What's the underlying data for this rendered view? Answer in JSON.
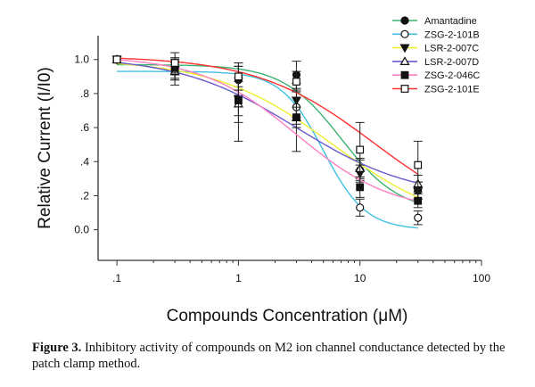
{
  "chart_data": {
    "type": "scatter",
    "xlabel": "Compounds Concentration (μM)",
    "ylabel": "Relative Current (I/I0)",
    "xscale": "log",
    "xlim": [
      0.07,
      100
    ],
    "ylim": [
      -0.18,
      1.14
    ],
    "xticks": [
      0.1,
      1,
      10,
      100
    ],
    "xtick_labels": [
      ".1",
      "1",
      "10",
      "100"
    ],
    "yticks": [
      0,
      0.2,
      0.4,
      0.6,
      0.8,
      1.0
    ],
    "ytick_labels": [
      "0.0",
      ".2",
      ".4",
      ".6",
      ".8",
      "1.0"
    ],
    "grid": false,
    "legend_position": "top-right",
    "x": [
      0.1,
      0.3,
      1,
      3,
      10,
      30
    ],
    "series": [
      {
        "name": "Amantadine",
        "color": "#3cb371",
        "marker": "filled-circle",
        "values": [
          1.0,
          0.93,
          0.88,
          0.91,
          0.35,
          0.23
        ],
        "errors": [
          0,
          0.05,
          0.1,
          0.08,
          0.06,
          0.05
        ],
        "fit": {
          "top": 0.97,
          "bottom": 0.1,
          "ic50": 7,
          "hill": 1.8
        }
      },
      {
        "name": "ZSG-2-101B",
        "color": "#40c0e0",
        "marker": "open-circle",
        "values": [
          1.0,
          0.95,
          0.9,
          0.72,
          0.13,
          0.07
        ],
        "errors": [
          0,
          0.04,
          0.06,
          0.1,
          0.05,
          0.04
        ],
        "fit": {
          "top": 0.93,
          "bottom": 0.0,
          "ic50": 5,
          "hill": 2.5
        }
      },
      {
        "name": "LSR-2-007C",
        "color": "#eeee30",
        "marker": "filled-triangle-down",
        "values": [
          1.0,
          0.94,
          0.77,
          0.76,
          0.33,
          0.23
        ],
        "errors": [
          0,
          0.06,
          0.1,
          0.1,
          0.05,
          0.05
        ],
        "fit": {
          "top": 1.0,
          "bottom": 0.0,
          "ic50": 6,
          "hill": 0.9
        }
      },
      {
        "name": "LSR-2-007D",
        "color": "#6a5acd",
        "marker": "open-triangle",
        "values": [
          1.0,
          0.93,
          0.74,
          0.66,
          0.36,
          0.27
        ],
        "errors": [
          0,
          0.08,
          0.22,
          0.2,
          0.06,
          0.05
        ],
        "fit": {
          "top": 1.02,
          "bottom": 0.18,
          "ic50": 3,
          "hill": 0.9
        }
      },
      {
        "name": "ZSG-2-046C",
        "color": "#ff80c0",
        "marker": "filled-square",
        "values": [
          1.0,
          0.95,
          0.76,
          0.66,
          0.25,
          0.17
        ],
        "errors": [
          0,
          0.06,
          0.13,
          0.06,
          0.06,
          0.04
        ],
        "fit": {
          "top": 1.02,
          "bottom": 0.1,
          "ic50": 3,
          "hill": 1.1
        }
      },
      {
        "name": "ZSG-2-101E",
        "color": "#ff3030",
        "marker": "open-square",
        "values": [
          1.0,
          0.98,
          0.9,
          0.87,
          0.47,
          0.38
        ],
        "errors": [
          0,
          0.06,
          0.08,
          0.06,
          0.16,
          0.14
        ],
        "fit": {
          "top": 1.02,
          "bottom": 0.0,
          "ic50": 13,
          "hill": 0.9
        }
      }
    ]
  },
  "caption": {
    "label": "Figure 3.",
    "text": " Inhibitory activity of compounds on M2 ion channel conductance detected by the patch clamp method."
  }
}
